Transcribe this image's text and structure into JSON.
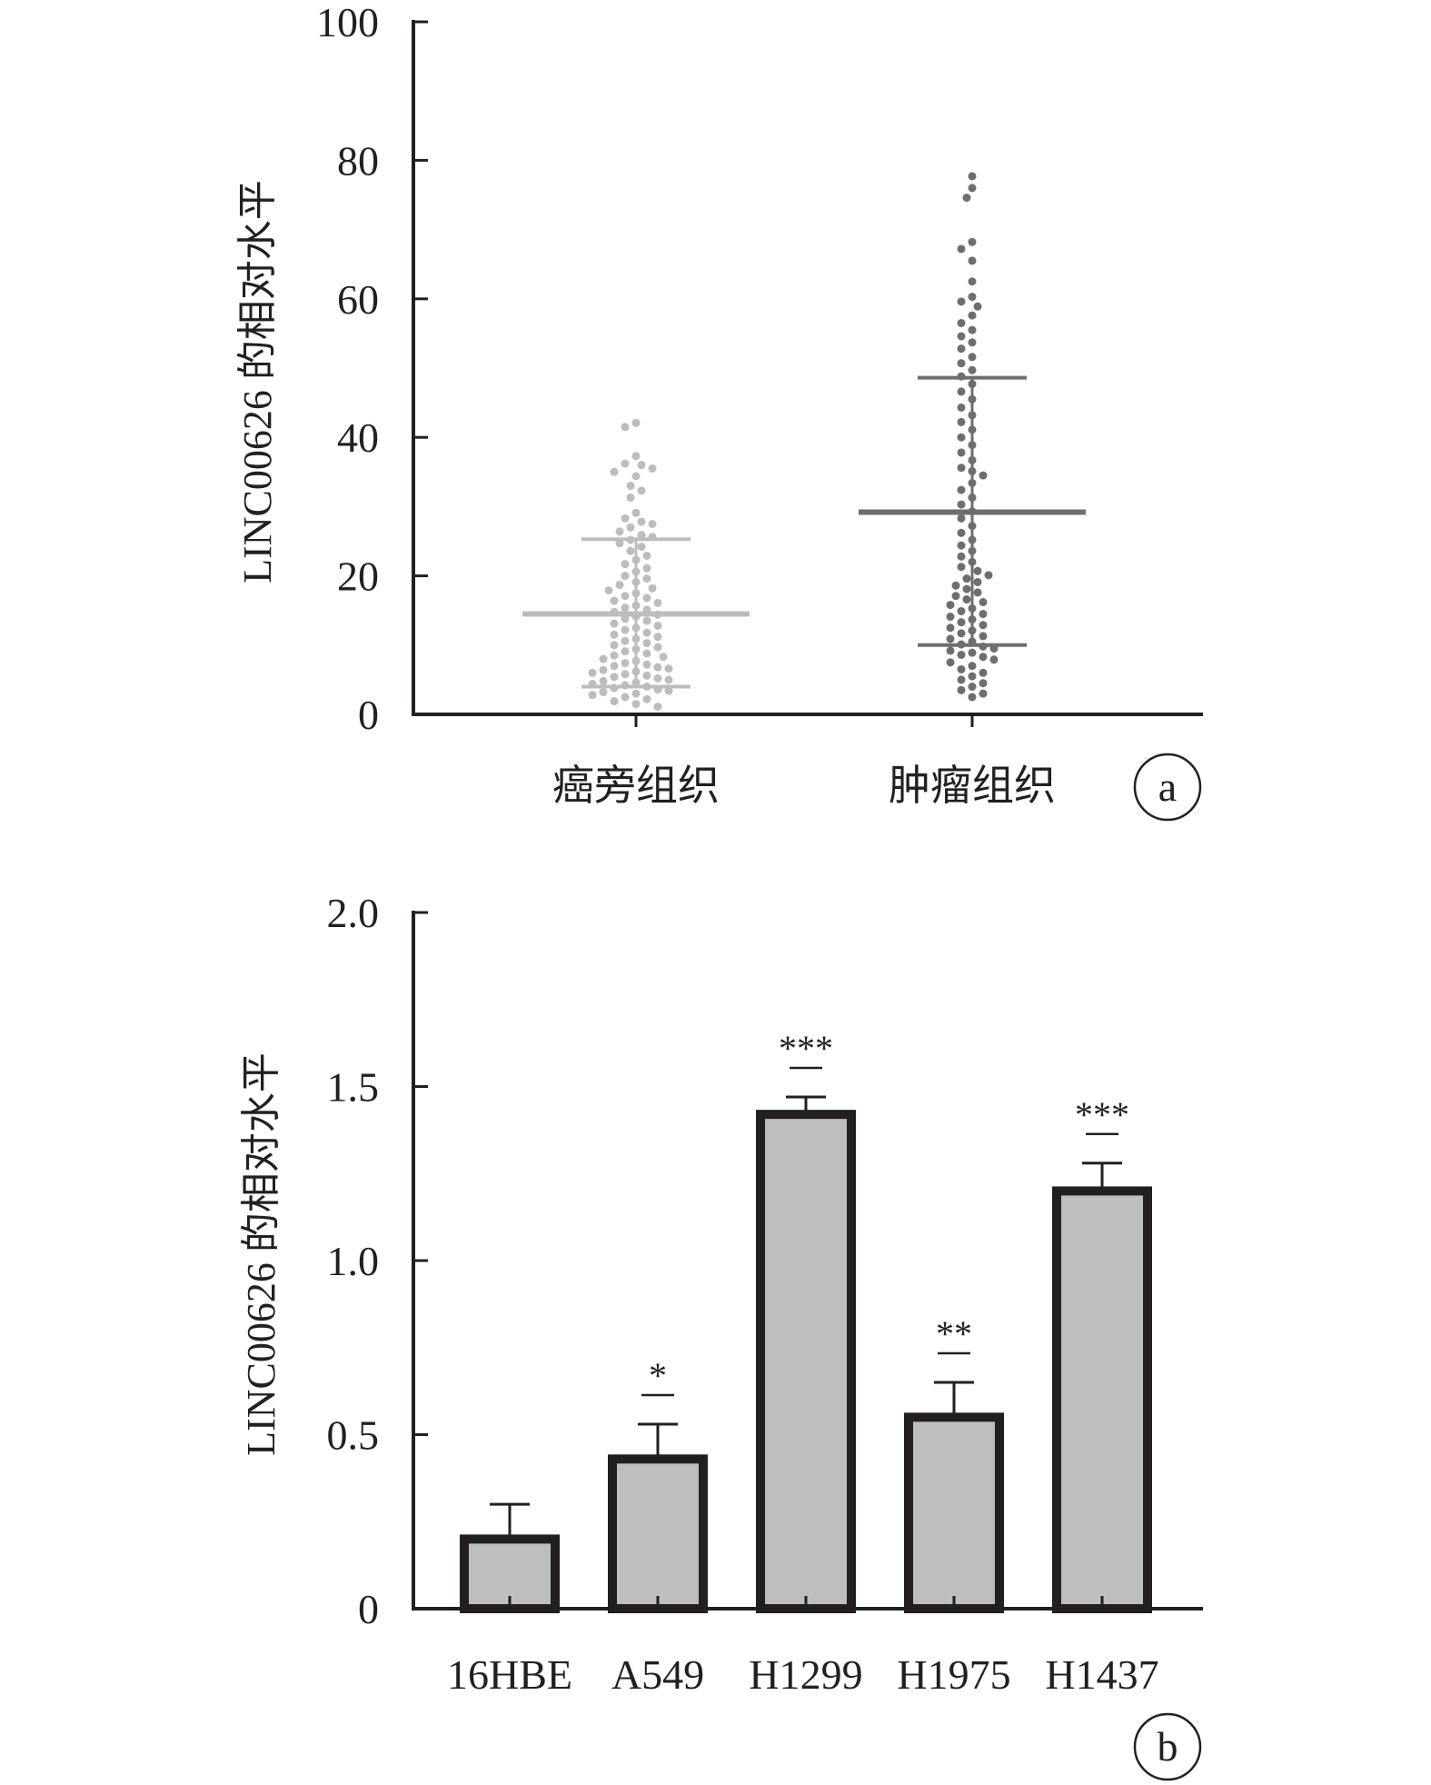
{
  "chart_data": [
    {
      "type": "scatter",
      "panel_label": "a",
      "ylabel": "LINC00626 的相对水平",
      "ylim": [
        0,
        100
      ],
      "yticks": [
        "0",
        "20",
        "40",
        "60",
        "80",
        "100"
      ],
      "categories": [
        "癌旁组织",
        "肿瘤组织"
      ],
      "colors": [
        "#bdbdbd",
        "#6d6e71"
      ],
      "summary": [
        {
          "category": "癌旁组织",
          "mean": 14.5,
          "sd_low": 4.0,
          "sd_high": 25.3
        },
        {
          "category": "肿瘤组织",
          "mean": 29.2,
          "sd_low": 10.0,
          "sd_high": 48.6
        }
      ],
      "series": [
        {
          "category": "癌旁组织",
          "values": [
            42.1,
            41.5,
            37.3,
            36.2,
            36.0,
            35.5,
            35.0,
            34.4,
            33.0,
            32.3,
            31.3,
            29.1,
            28.3,
            27.8,
            27.5,
            27.0,
            26.4,
            25.9,
            25.6,
            25.2,
            24.7,
            24.2,
            23.6,
            22.9,
            22.3,
            21.7,
            21.1,
            20.6,
            20.0,
            19.6,
            19.1,
            18.7,
            18.2,
            17.9,
            17.5,
            17.1,
            16.8,
            16.4,
            16.1,
            15.7,
            15.4,
            15.1,
            14.8,
            14.4,
            14.1,
            13.8,
            13.5,
            13.1,
            12.8,
            12.5,
            12.2,
            11.8,
            11.5,
            11.2,
            10.9,
            10.6,
            10.3,
            10.0,
            9.7,
            9.4,
            9.1,
            8.8,
            8.5,
            8.3,
            8.0,
            7.7,
            7.4,
            7.2,
            7.0,
            6.8,
            6.6,
            6.4,
            6.2,
            6.0,
            5.8,
            5.6,
            5.4,
            5.2,
            5.0,
            4.8,
            4.6,
            4.4,
            4.2,
            4.0,
            3.8,
            3.6,
            3.4,
            3.2,
            3.0,
            2.8,
            2.5,
            2.2,
            1.9,
            1.5,
            1.1
          ]
        },
        {
          "category": "肿瘤组织",
          "values": [
            77.7,
            76.0,
            74.6,
            68.2,
            67.2,
            65.5,
            62.5,
            60.3,
            59.6,
            58.9,
            57.6,
            56.5,
            55.5,
            54.6,
            53.7,
            52.8,
            51.6,
            50.7,
            49.7,
            48.8,
            47.7,
            46.6,
            45.5,
            44.3,
            43.2,
            42.2,
            41.1,
            40.0,
            38.9,
            37.8,
            36.7,
            35.6,
            35.1,
            34.5,
            33.4,
            32.4,
            31.3,
            30.3,
            29.3,
            28.3,
            27.2,
            26.2,
            25.2,
            24.4,
            23.6,
            22.8,
            22.0,
            21.3,
            20.7,
            20.1,
            19.6,
            19.1,
            18.6,
            18.1,
            17.6,
            17.1,
            16.6,
            16.2,
            15.8,
            15.3,
            14.9,
            14.5,
            14.1,
            13.7,
            13.3,
            12.9,
            12.5,
            12.1,
            11.7,
            11.3,
            10.9,
            10.5,
            10.1,
            9.8,
            9.5,
            9.2,
            8.9,
            8.6,
            8.3,
            7.9,
            7.5,
            7.0,
            6.5,
            6.0,
            5.5,
            5.0,
            4.5,
            4.0,
            3.5,
            3.0,
            2.5
          ]
        }
      ]
    },
    {
      "type": "bar",
      "panel_label": "b",
      "ylabel": "LINC00626 的相对水平",
      "ylim": [
        0,
        2.0
      ],
      "yticks": [
        "0",
        "0.5",
        "1.0",
        "1.5",
        "2.0"
      ],
      "categories": [
        "16HBE",
        "A549",
        "H1299",
        "H1975",
        "H1437"
      ],
      "values": [
        0.2,
        0.43,
        1.42,
        0.55,
        1.2
      ],
      "errors": [
        0.1,
        0.1,
        0.05,
        0.1,
        0.08
      ],
      "significance": [
        "",
        "*",
        "***",
        "**",
        "***"
      ],
      "colors": {
        "bar_fill": "#bcbec0",
        "bar_edge": "#231f20"
      }
    }
  ]
}
